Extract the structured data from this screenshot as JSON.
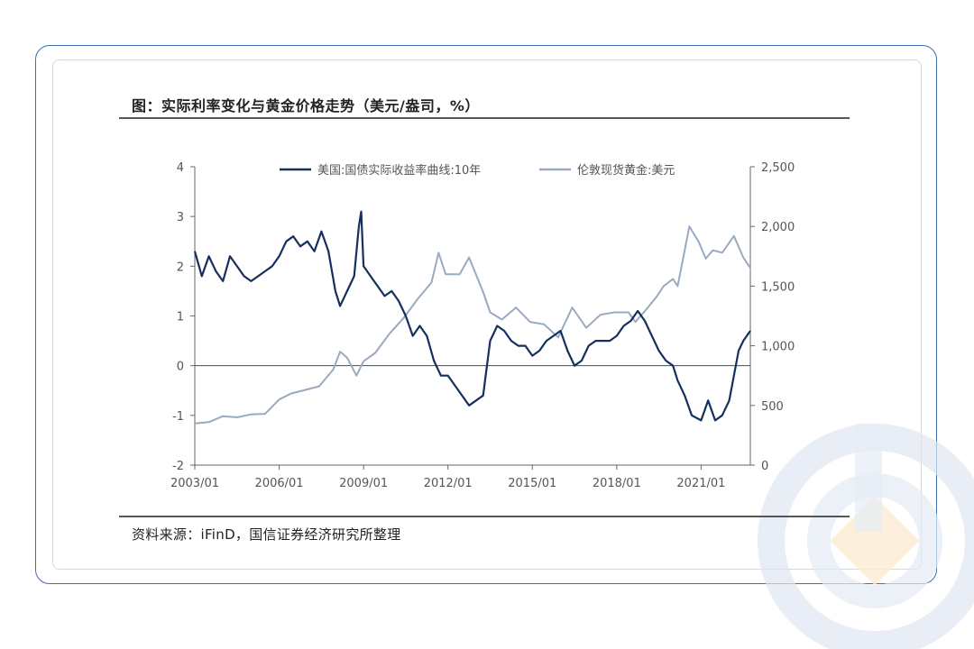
{
  "header": {
    "title": "图：实际利率变化与黄金价格走势（美元/盎司，%）"
  },
  "footer": {
    "source": "资料来源：iFinD，国信证券经济研究所整理"
  },
  "colors": {
    "real_rate": "#152f5e",
    "gold": "#9aaabf",
    "frame": "#3f6fae"
  },
  "chart_data": {
    "type": "line",
    "title": "",
    "x_tick_labels": [
      "2003/01",
      "2006/01",
      "2009/01",
      "2012/01",
      "2015/01",
      "2018/01",
      "2021/01"
    ],
    "xlim": [
      "2003/01",
      "2022/10"
    ],
    "left_axis": {
      "ylim": [
        -2,
        4
      ],
      "ticks": [
        "4",
        "3",
        "2",
        "1",
        "0",
        "-1",
        "-2"
      ]
    },
    "right_axis": {
      "ylim": [
        0,
        2500
      ],
      "ticks": [
        "2,500",
        "2,000",
        "1,500",
        "1,000",
        "500",
        "0"
      ]
    },
    "legend_position": "top",
    "series": [
      {
        "name": "美国:国债实际收益率曲线:10年",
        "axis": "left",
        "x": [
          "2003/01",
          "2003/04",
          "2003/07",
          "2003/10",
          "2004/01",
          "2004/04",
          "2004/07",
          "2004/10",
          "2005/01",
          "2005/04",
          "2005/07",
          "2005/10",
          "2006/01",
          "2006/04",
          "2006/07",
          "2006/10",
          "2007/01",
          "2007/04",
          "2007/07",
          "2007/10",
          "2008/01",
          "2008/03",
          "2008/06",
          "2008/09",
          "2008/11",
          "2008/12",
          "2009/01",
          "2009/04",
          "2009/07",
          "2009/10",
          "2010/01",
          "2010/04",
          "2010/07",
          "2010/10",
          "2011/01",
          "2011/04",
          "2011/07",
          "2011/10",
          "2012/01",
          "2012/04",
          "2012/07",
          "2012/10",
          "2013/01",
          "2013/04",
          "2013/07",
          "2013/10",
          "2014/01",
          "2014/04",
          "2014/07",
          "2014/10",
          "2015/01",
          "2015/04",
          "2015/07",
          "2015/10",
          "2016/01",
          "2016/04",
          "2016/07",
          "2016/10",
          "2017/01",
          "2017/04",
          "2017/07",
          "2017/10",
          "2018/01",
          "2018/04",
          "2018/07",
          "2018/10",
          "2019/01",
          "2019/04",
          "2019/07",
          "2019/10",
          "2020/01",
          "2020/03",
          "2020/06",
          "2020/09",
          "2021/01",
          "2021/04",
          "2021/07",
          "2021/10",
          "2022/01",
          "2022/03",
          "2022/05",
          "2022/07",
          "2022/10"
        ],
        "values": [
          2.3,
          1.8,
          2.2,
          1.9,
          1.7,
          2.2,
          2.0,
          1.8,
          1.7,
          1.8,
          1.9,
          2.0,
          2.2,
          2.5,
          2.6,
          2.4,
          2.5,
          2.3,
          2.7,
          2.3,
          1.5,
          1.2,
          1.5,
          1.8,
          2.8,
          3.1,
          2.0,
          1.8,
          1.6,
          1.4,
          1.5,
          1.3,
          1.0,
          0.6,
          0.8,
          0.6,
          0.1,
          -0.2,
          -0.2,
          -0.4,
          -0.6,
          -0.8,
          -0.7,
          -0.6,
          0.5,
          0.8,
          0.7,
          0.5,
          0.4,
          0.4,
          0.2,
          0.3,
          0.5,
          0.6,
          0.7,
          0.3,
          0.0,
          0.1,
          0.4,
          0.5,
          0.5,
          0.5,
          0.6,
          0.8,
          0.9,
          1.1,
          0.9,
          0.6,
          0.3,
          0.1,
          0.0,
          -0.3,
          -0.6,
          -1.0,
          -1.1,
          -0.7,
          -1.1,
          -1.0,
          -0.7,
          -0.2,
          0.3,
          0.5,
          0.7
        ]
      },
      {
        "name": "伦敦现货黄金:美元",
        "axis": "right",
        "x": [
          "2003/01",
          "2003/07",
          "2004/01",
          "2004/07",
          "2005/01",
          "2005/07",
          "2006/01",
          "2006/06",
          "2006/12",
          "2007/06",
          "2007/12",
          "2008/03",
          "2008/06",
          "2008/10",
          "2009/01",
          "2009/06",
          "2009/12",
          "2010/06",
          "2010/12",
          "2011/06",
          "2011/09",
          "2011/12",
          "2012/06",
          "2012/10",
          "2013/04",
          "2013/07",
          "2013/12",
          "2014/06",
          "2014/12",
          "2015/06",
          "2015/12",
          "2016/06",
          "2016/12",
          "2017/06",
          "2017/12",
          "2018/06",
          "2018/09",
          "2019/01",
          "2019/06",
          "2019/09",
          "2020/01",
          "2020/03",
          "2020/08",
          "2020/12",
          "2021/03",
          "2021/06",
          "2021/10",
          "2022/03",
          "2022/07",
          "2022/10"
        ],
        "values": [
          350,
          360,
          410,
          400,
          425,
          430,
          550,
          600,
          630,
          660,
          800,
          950,
          900,
          750,
          870,
          940,
          1100,
          1230,
          1390,
          1530,
          1780,
          1600,
          1600,
          1740,
          1450,
          1280,
          1220,
          1320,
          1200,
          1180,
          1070,
          1320,
          1150,
          1260,
          1280,
          1280,
          1200,
          1290,
          1410,
          1500,
          1560,
          1500,
          2000,
          1870,
          1730,
          1800,
          1780,
          1920,
          1740,
          1650
        ]
      }
    ]
  }
}
